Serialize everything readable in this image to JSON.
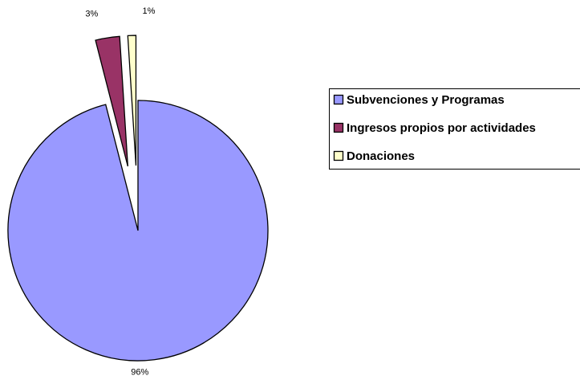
{
  "chart_data": {
    "type": "pie",
    "categories": [
      "Subvenciones y Programas",
      "Ingresos propios por actividades",
      "Donaciones"
    ],
    "values": [
      96,
      3,
      1
    ],
    "value_labels": [
      "96%",
      "3%",
      "1%"
    ],
    "colors": [
      "#9999ff",
      "#993366",
      "#ffffcc"
    ],
    "legend": "right"
  }
}
